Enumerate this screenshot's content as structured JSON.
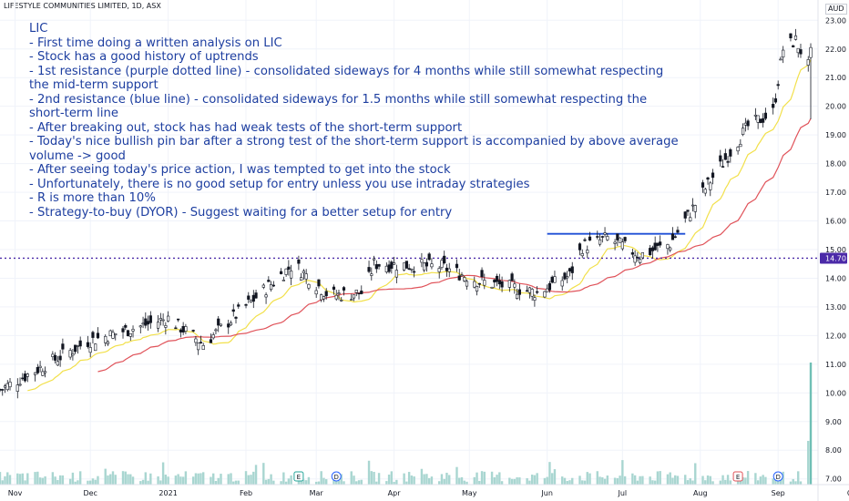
{
  "header": {
    "title": "LIFESTYLE COMMUNITIES LIMITED, 1D, ASX"
  },
  "currency_badge": "AUD",
  "notes": {
    "title": "LIC",
    "lines": [
      "- First time doing a written analysis on LIC",
      "- Stock has a good history of uptrends",
      "- 1st resistance (purple dotted line) - consolidated sideways for 4 months while still somewhat respecting the mid-term support",
      "- 2nd resistance (blue line) - consolidated sideways for 1.5 months while still somewhat respecting the short-term line",
      "- After breaking out, stock has had weak tests of the short-term support",
      "- Today's nice bullish pin bar after a strong test of the short-term support is accompanied by above average volume -> good",
      "- After seeing today's price action, I was tempted to get into the stock",
      "- Unfortunately, there is no good setup for entry unless you use intraday strategies",
      "- R is more than 10%",
      "- Strategy-to-buy (DYOR) - Suggest waiting for a better setup for entry"
    ]
  },
  "chart_data": {
    "type": "candlestick",
    "x_labels": [
      "Nov",
      "Dec",
      "2021",
      "Feb",
      "Mar",
      "Apr",
      "May",
      "Jun",
      "Jul",
      "Aug",
      "Sep",
      "Oct"
    ],
    "y_ticks": [
      "23.00",
      "22.00",
      "21.00",
      "20.00",
      "19.00",
      "18.00",
      "17.00",
      "16.00",
      "15.00",
      "14.00",
      "13.00",
      "12.00",
      "11.00",
      "10.00",
      "9.00",
      "8.00",
      "7.00"
    ],
    "y_range": [
      6.8,
      23.2
    ],
    "last_price_label": "14.70",
    "resistance_1": {
      "price": 14.7,
      "style": "dotted",
      "color": "#4b2aa8"
    },
    "resistance_2": {
      "price": 15.55,
      "from": "2021-06-01",
      "to": "2021-07-26",
      "color": "#1f4fd6"
    },
    "event_markers": [
      {
        "date": "2021-02-22",
        "label": "E"
      },
      {
        "date": "2021-03-09",
        "label": "D"
      },
      {
        "date": "2021-08-16",
        "label": "E"
      },
      {
        "date": "2021-09-01",
        "label": "D"
      }
    ],
    "key_points": [
      {
        "date": "2020-10-26",
        "price": 10.1
      },
      {
        "date": "2020-11-30",
        "price": 11.8
      },
      {
        "date": "2021-01-01",
        "price": 12.6
      },
      {
        "date": "2021-01-15",
        "price": 11.7
      },
      {
        "date": "2021-02-20",
        "price": 14.5
      },
      {
        "date": "2021-03-06",
        "price": 13.4
      },
      {
        "date": "2021-03-20",
        "price": 13.5
      },
      {
        "date": "2021-03-24",
        "price": 14.5
      },
      {
        "date": "2021-04-20",
        "price": 14.4
      },
      {
        "date": "2021-05-05",
        "price": 13.9
      },
      {
        "date": "2021-05-28",
        "price": 13.5
      },
      {
        "date": "2021-06-10",
        "price": 14.1
      },
      {
        "date": "2021-06-15",
        "price": 15.1
      },
      {
        "date": "2021-06-25",
        "price": 15.4
      },
      {
        "date": "2021-07-08",
        "price": 14.8
      },
      {
        "date": "2021-07-20",
        "price": 15.2
      },
      {
        "date": "2021-08-05",
        "price": 17.4
      },
      {
        "date": "2021-08-20",
        "price": 19.3
      },
      {
        "date": "2021-08-30",
        "price": 19.8
      },
      {
        "date": "2021-09-03",
        "price": 22.0
      },
      {
        "date": "2021-09-08",
        "price": 22.3
      },
      {
        "date": "2021-09-13",
        "price": 21.4
      }
    ],
    "colors": {
      "up": "#26a69a",
      "down": "#131722",
      "candle_body_up": "#ffffff",
      "ma_short": "#f2e04a",
      "ma_mid": "#e0535a",
      "volume": "#a9d6d1",
      "volume_last": "#6fbfb5",
      "grid": "#f0f3fa"
    }
  }
}
